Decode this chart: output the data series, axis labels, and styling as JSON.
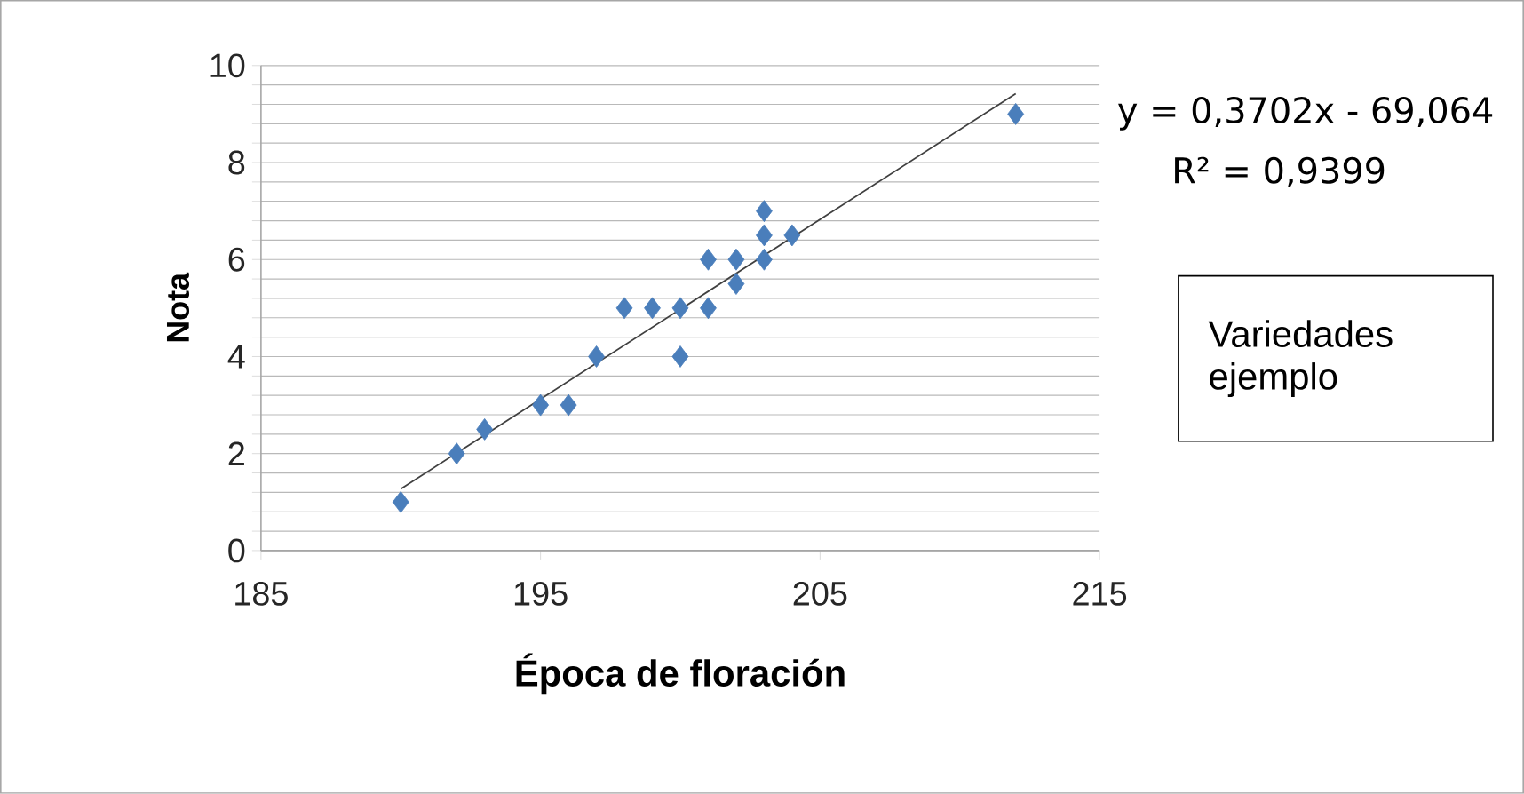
{
  "chart_data": {
    "type": "scatter",
    "xlabel": "Época de floración",
    "ylabel": "Nota",
    "x": [
      190,
      192,
      193,
      195,
      196,
      197,
      198,
      199,
      200,
      200,
      201,
      201,
      202,
      202,
      203,
      203,
      203,
      204,
      212
    ],
    "series": [
      {
        "color": "#4a7ebb",
        "marker": "diamond",
        "values": [
          1,
          2,
          2.5,
          3,
          3,
          4,
          5,
          5,
          5,
          4,
          5,
          6,
          6,
          5.5,
          7,
          6.5,
          6,
          6.5,
          9
        ]
      },
      {
        "type": "line",
        "color": "#404040",
        "marker": "none",
        "x": [
          190,
          212
        ],
        "values": [
          1.27,
          9.42
        ]
      }
    ],
    "xlim": [
      185,
      215
    ],
    "xticks": [
      185,
      195,
      205,
      215
    ],
    "ylim": [
      0,
      10
    ],
    "yticks": [
      0,
      {
        "value": 0.4,
        "label": null
      },
      {
        "value": 0.8,
        "label": null
      },
      {
        "value": 1.2,
        "label": null
      },
      {
        "value": 1.6,
        "label": null
      },
      2,
      {
        "value": 2.4,
        "label": null
      },
      {
        "value": 2.8,
        "label": null
      },
      {
        "value": 3.2,
        "label": null
      },
      {
        "value": 3.6,
        "label": null
      },
      4,
      {
        "value": 4.4,
        "label": null
      },
      {
        "value": 4.8,
        "label": null
      },
      {
        "value": 5.2,
        "label": null
      },
      {
        "value": 5.6,
        "label": null
      },
      6,
      {
        "value": 6.4,
        "label": null
      },
      {
        "value": 6.8,
        "label": null
      },
      {
        "value": 7.2,
        "label": null
      },
      {
        "value": 7.6,
        "label": null
      },
      8,
      {
        "value": 8.4,
        "label": null
      },
      {
        "value": 8.8,
        "label": null
      },
      {
        "value": 9.2,
        "label": null
      },
      {
        "value": 9.6,
        "label": null
      },
      10
    ],
    "grid": "y",
    "annotations": [
      "y = 0,3702x - 69,064",
      "R² = 0,9399",
      "Variedades ejemplo"
    ]
  }
}
